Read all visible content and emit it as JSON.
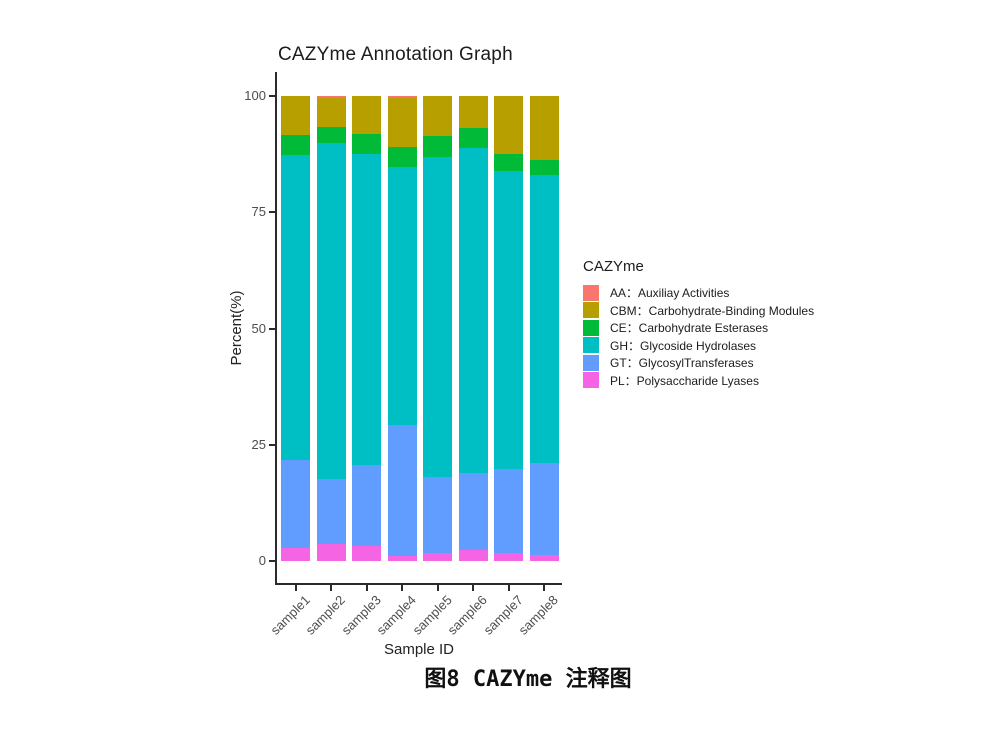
{
  "figure": {
    "caption": "图8  CAZYme 注释图"
  },
  "chart_data": {
    "type": "bar",
    "stacked": true,
    "title": "CAZYme Annotation Graph",
    "xlabel": "Sample ID",
    "ylabel": "Percent(%)",
    "ylim": [
      0,
      100
    ],
    "yticks": [
      0,
      25,
      50,
      75,
      100
    ],
    "grid": false,
    "categories": [
      "sample1",
      "sample2",
      "sample3",
      "sample4",
      "sample5",
      "sample6",
      "sample7",
      "sample8"
    ],
    "stack_order_bottom_to_top": [
      "PL",
      "GT",
      "GH",
      "CE",
      "CBM",
      "AA"
    ],
    "series": [
      {
        "name": "AA",
        "label": "AA：Auxiliay Activities",
        "color": "#F8766D",
        "values": [
          0.0,
          0.5,
          0.0,
          0.5,
          0.0,
          0.0,
          0.0,
          0.0
        ]
      },
      {
        "name": "CBM",
        "label": "CBM：Carbohydrate-Binding Modules",
        "color": "#B79F00",
        "values": [
          8.3,
          6.1,
          8.1,
          10.4,
          8.6,
          6.8,
          12.4,
          13.8
        ]
      },
      {
        "name": "CE",
        "label": "CE：Carbohydrate Esterases",
        "color": "#00BA38",
        "values": [
          4.4,
          3.5,
          4.3,
          4.3,
          4.5,
          4.4,
          3.8,
          3.1
        ]
      },
      {
        "name": "GH",
        "label": "GH：Glycoside Hydrolases",
        "color": "#00BFC4",
        "values": [
          65.6,
          72.3,
          66.9,
          55.5,
          68.8,
          69.8,
          64.0,
          61.9
        ]
      },
      {
        "name": "GT",
        "label": "GT：GlycosylTransferases",
        "color": "#619CFF",
        "values": [
          18.9,
          13.8,
          17.5,
          28.1,
          16.4,
          16.5,
          18.0,
          19.9
        ]
      },
      {
        "name": "PL",
        "label": "PL：Polysaccharide Lyases",
        "color": "#F564E3",
        "values": [
          2.8,
          3.8,
          3.2,
          1.2,
          1.7,
          2.5,
          1.8,
          1.3
        ]
      }
    ],
    "legend": {
      "title": "CAZYme",
      "position": "right"
    }
  }
}
